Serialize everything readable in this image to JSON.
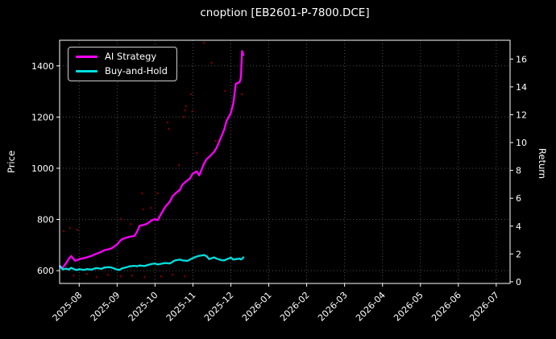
{
  "title": "cnoption [EB2601-P-7800.DCE]",
  "legend": [
    {
      "label": "AI Strategy"
    },
    {
      "label": "Buy-and-Hold"
    }
  ],
  "chart_data": {
    "type": "line",
    "title": "cnoption [EB2601-P-7800.DCE]",
    "background_color": "#000000",
    "grid": true,
    "legend_position": "upper left",
    "x_axis": {
      "tick_labels": [
        "2025-08",
        "2025-09",
        "2025-10",
        "2025-11",
        "2025-12",
        "2026-01",
        "2026-02",
        "2026-03",
        "2026-04",
        "2026-05",
        "2026-06",
        "2026-07"
      ],
      "tick_rotation": -45
    },
    "price_axis": {
      "label": "Price",
      "side": "left",
      "ticks": [
        600,
        800,
        1000,
        1200,
        1400
      ],
      "lim": [
        550,
        1500
      ]
    },
    "return_axis": {
      "label": "Return",
      "side": "right",
      "ticks": [
        0,
        2,
        4,
        6,
        8,
        10,
        12,
        14,
        16
      ],
      "lim": [
        -0.12,
        17.35
      ]
    },
    "dates": [
      "2025-07-16",
      "2025-07-18",
      "2025-07-21",
      "2025-07-23",
      "2025-07-25",
      "2025-07-28",
      "2025-07-30",
      "2025-08-01",
      "2025-08-05",
      "2025-08-07",
      "2025-08-11",
      "2025-08-13",
      "2025-08-15",
      "2025-08-19",
      "2025-08-21",
      "2025-08-25",
      "2025-08-27",
      "2025-09-01",
      "2025-09-03",
      "2025-09-05",
      "2025-09-09",
      "2025-09-11",
      "2025-09-15",
      "2025-09-17",
      "2025-09-19",
      "2025-09-23",
      "2025-09-25",
      "2025-09-29",
      "2025-10-01",
      "2025-10-03",
      "2025-10-09",
      "2025-10-13",
      "2025-10-15",
      "2025-10-17",
      "2025-10-21",
      "2025-10-23",
      "2025-10-27",
      "2025-10-29",
      "2025-10-31",
      "2025-11-04",
      "2025-11-06",
      "2025-11-10",
      "2025-11-12",
      "2025-11-14",
      "2025-11-18",
      "2025-11-20",
      "2025-11-24",
      "2025-11-26",
      "2025-11-28",
      "2025-12-01",
      "2025-12-03",
      "2025-12-05",
      "2025-12-08",
      "2025-12-09",
      "2025-12-10",
      "2025-12-11"
    ],
    "series": [
      {
        "name": "AI Strategy",
        "color": "#ff00ff",
        "axis": "price",
        "values": [
          618,
          610,
          630,
          646,
          657,
          639,
          641,
          645,
          649,
          652,
          658,
          663,
          666,
          674,
          680,
          684,
          687,
          702,
          714,
          723,
          730,
          732,
          736,
          752,
          775,
          780,
          783,
          797,
          801,
          797,
          848,
          870,
          890,
          900,
          916,
          936,
          953,
          960,
          978,
          988,
          972,
          1020,
          1036,
          1044,
          1064,
          1080,
          1126,
          1150,
          1185,
          1216,
          1255,
          1330,
          1336,
          1352,
          1458,
          1443
        ]
      },
      {
        "name": "Buy-and-Hold",
        "color": "#00e0e0",
        "axis": "price",
        "values": [
          618,
          605,
          608,
          604,
          611,
          604,
          603,
          606,
          603,
          606,
          604,
          608,
          610,
          607,
          612,
          614,
          612,
          604,
          603,
          609,
          614,
          617,
          619,
          617,
          620,
          618,
          621,
          626,
          628,
          624,
          630,
          628,
          634,
          640,
          643,
          640,
          638,
          643,
          648,
          655,
          658,
          661,
          656,
          645,
          652,
          647,
          641,
          640,
          644,
          651,
          643,
          645,
          647,
          644,
          646,
          652
        ]
      }
    ],
    "trade_dots": {
      "color": "#8b0000",
      "points": [
        [
          "2025-07-19",
          754
        ],
        [
          "2025-07-24",
          767
        ],
        [
          "2025-07-27",
          581
        ],
        [
          "2025-07-30",
          760
        ],
        [
          "2025-08-07",
          587
        ],
        [
          "2025-08-15",
          575
        ],
        [
          "2025-08-24",
          584
        ],
        [
          "2025-09-04",
          801
        ],
        [
          "2025-09-04",
          578
        ],
        [
          "2025-09-12",
          782
        ],
        [
          "2025-09-13",
          581
        ],
        [
          "2025-09-21",
          902
        ],
        [
          "2025-09-22",
          839
        ],
        [
          "2025-09-23",
          575
        ],
        [
          "2025-09-28",
          845
        ],
        [
          "2025-10-03",
          902
        ],
        [
          "2025-10-06",
          578
        ],
        [
          "2025-10-11",
          1179
        ],
        [
          "2025-10-12",
          1154
        ],
        [
          "2025-10-15",
          584
        ],
        [
          "2025-10-20",
          1012
        ],
        [
          "2025-10-24",
          1201
        ],
        [
          "2025-10-25",
          1226
        ],
        [
          "2025-10-25",
          578
        ],
        [
          "2025-10-26",
          1242
        ],
        [
          "2025-10-30",
          1289
        ],
        [
          "2025-10-31",
          1223
        ],
        [
          "2025-11-04",
          1059
        ],
        [
          "2025-11-10",
          1490
        ],
        [
          "2025-11-16",
          1412
        ],
        [
          "2025-11-19",
          1107
        ],
        [
          "2025-11-27",
          1302
        ],
        [
          "2025-12-10",
          1289
        ]
      ]
    }
  }
}
